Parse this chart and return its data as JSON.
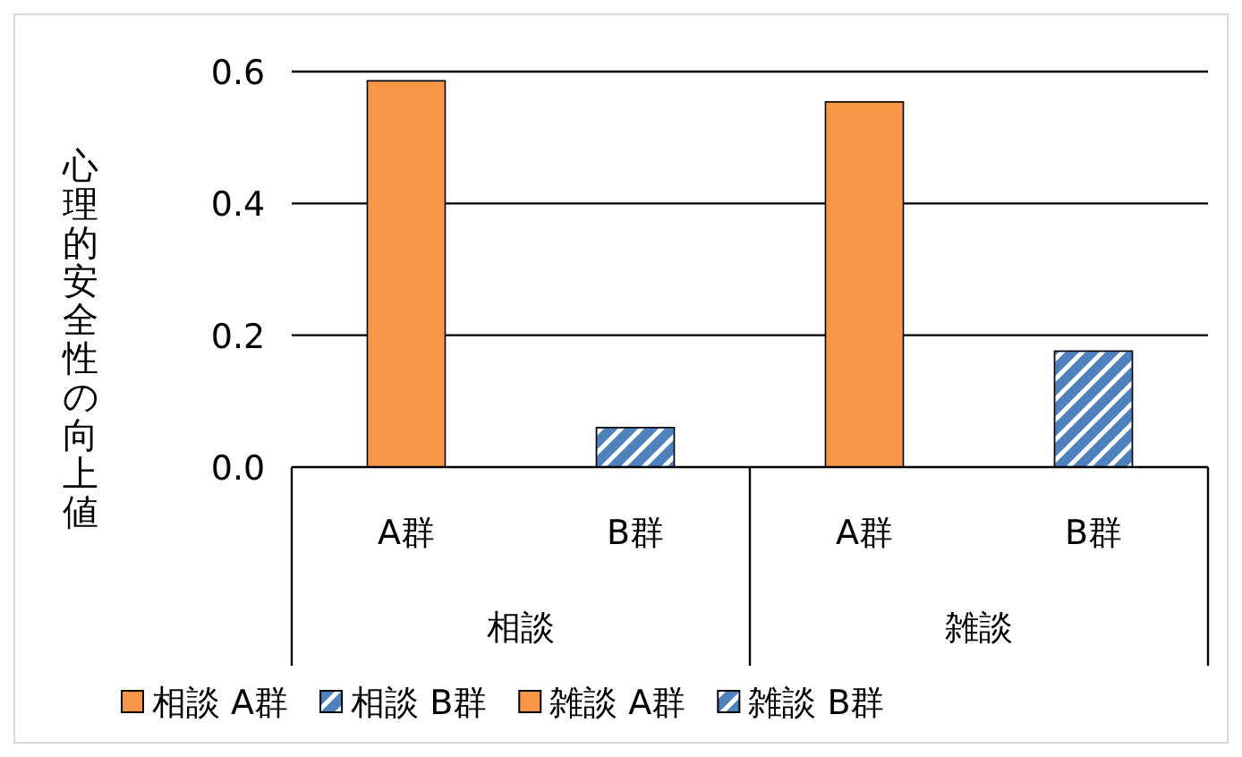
{
  "chart_data": {
    "type": "bar",
    "ylabel": "心理的安全性の向上値",
    "categories": [
      "A群",
      "B群",
      "A群",
      "B群"
    ],
    "annotations": [
      "相談",
      "雑談"
    ],
    "series": [
      {
        "name": "相談 A群",
        "color": "#f79646",
        "values": [
          0.586,
          null,
          null,
          null
        ]
      },
      {
        "name": "相談 B群",
        "color": "#4f81bd",
        "values": [
          null,
          0.06,
          null,
          null
        ]
      },
      {
        "name": "雑談 A群",
        "color": "#f79646",
        "values": [
          null,
          null,
          0.554,
          null
        ]
      },
      {
        "name": "雑談 B群",
        "color": "#4f81bd",
        "values": [
          null,
          null,
          null,
          0.176
        ]
      }
    ],
    "ylim": [
      0,
      0.6
    ],
    "yticks": [
      {
        "value": 0,
        "label": "0.0"
      },
      {
        "value": 0.2,
        "label": "0.2"
      },
      {
        "value": 0.4,
        "label": "0.4"
      },
      {
        "value": 0.6,
        "label": "0.6"
      }
    ],
    "grid": "y",
    "legend": "bottom"
  }
}
